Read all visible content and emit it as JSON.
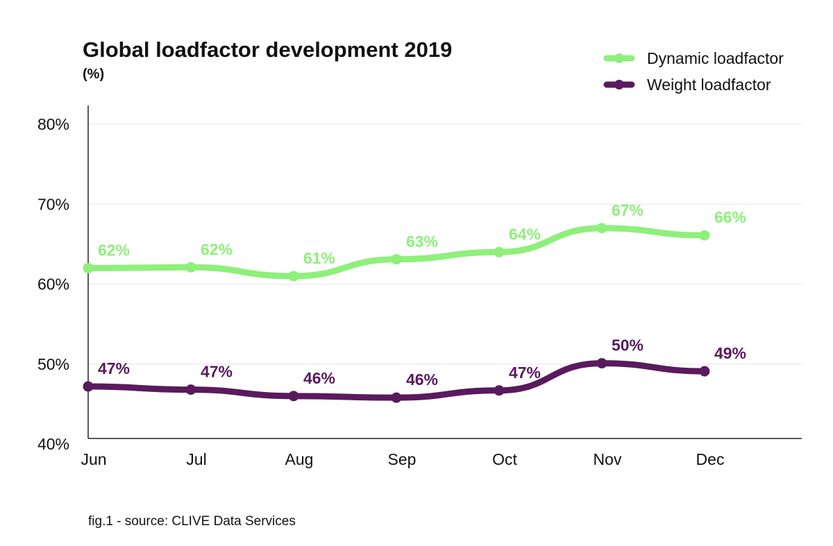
{
  "chart_data": {
    "type": "line",
    "title": "Global loadfactor development 2019",
    "subtitle": "(%)",
    "categories": [
      "Jun",
      "Jul",
      "Aug",
      "Sep",
      "Oct",
      "Nov",
      "Dec"
    ],
    "ylim": [
      40,
      80
    ],
    "yticks": [
      40,
      50,
      60,
      70,
      80
    ],
    "ytick_labels": [
      "40%",
      "50%",
      "60%",
      "70%",
      "80%"
    ],
    "grid": true,
    "legend_position": "top-right",
    "series": [
      {
        "name": "Dynamic loadfactor",
        "color": "#8ef07a",
        "values": [
          62,
          62.1,
          61,
          63.1,
          64,
          67,
          66.1
        ],
        "labels": [
          "62%",
          "62%",
          "61%",
          "63%",
          "64%",
          "67%",
          "66%"
        ]
      },
      {
        "name": "Weight loadfactor",
        "color": "#5a1a5e",
        "values": [
          47.2,
          46.8,
          46,
          45.8,
          46.7,
          50.1,
          49.1
        ],
        "labels": [
          "47%",
          "47%",
          "46%",
          "46%",
          "47%",
          "50%",
          "49%"
        ]
      }
    ]
  },
  "footer": {
    "source": "fig.1 - source: CLIVE Data Services"
  }
}
